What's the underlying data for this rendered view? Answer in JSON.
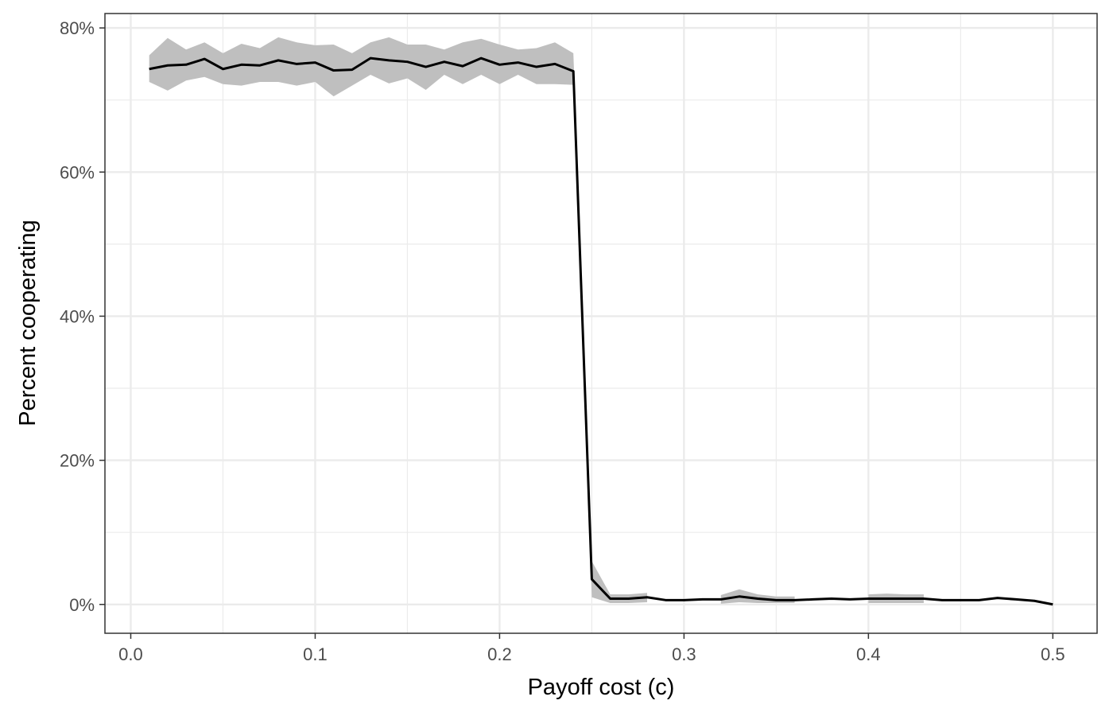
{
  "chart_data": {
    "type": "line",
    "xlabel": "Payoff cost (c)",
    "ylabel": "Percent cooperating",
    "xlim": [
      -0.014,
      0.524
    ],
    "ylim": [
      -0.04,
      0.82
    ],
    "x_ticks": [
      0.0,
      0.1,
      0.2,
      0.3,
      0.4,
      0.5
    ],
    "x_tick_labels": [
      "0.0",
      "0.1",
      "0.2",
      "0.3",
      "0.4",
      "0.5"
    ],
    "y_ticks": [
      0.0,
      0.2,
      0.4,
      0.6,
      0.8
    ],
    "y_tick_labels": [
      "0%",
      "20%",
      "40%",
      "60%",
      "80%"
    ],
    "x_minor_ticks": [
      0.05,
      0.15,
      0.25,
      0.35,
      0.45
    ],
    "y_minor_ticks": [
      0.1,
      0.3,
      0.5,
      0.7
    ],
    "grid": true,
    "legend": "none",
    "colors": {
      "line": "#000000",
      "ribbon": "#bfbfbf",
      "grid": "#ebebeb",
      "panel_border": "#333333",
      "tick_label": "#4d4d4d"
    },
    "series": [
      {
        "x": [
          0.01,
          0.02,
          0.03,
          0.04,
          0.05,
          0.06,
          0.07,
          0.08,
          0.09,
          0.1,
          0.11,
          0.12,
          0.13,
          0.14,
          0.15,
          0.16,
          0.17,
          0.18,
          0.19,
          0.2,
          0.21,
          0.22,
          0.23,
          0.24,
          0.25,
          0.26,
          0.27,
          0.28,
          0.29,
          0.3,
          0.31,
          0.32,
          0.33,
          0.34,
          0.35,
          0.36,
          0.37,
          0.38,
          0.39,
          0.4,
          0.41,
          0.42,
          0.43,
          0.44,
          0.45,
          0.46,
          0.47,
          0.48,
          0.49,
          0.5
        ],
        "y": [
          0.743,
          0.748,
          0.749,
          0.757,
          0.743,
          0.749,
          0.748,
          0.755,
          0.75,
          0.752,
          0.741,
          0.742,
          0.758,
          0.755,
          0.753,
          0.746,
          0.753,
          0.747,
          0.758,
          0.749,
          0.752,
          0.746,
          0.75,
          0.74,
          0.035,
          0.008,
          0.008,
          0.01,
          0.006,
          0.006,
          0.007,
          0.007,
          0.011,
          0.008,
          0.006,
          0.006,
          0.007,
          0.008,
          0.007,
          0.008,
          0.008,
          0.008,
          0.008,
          0.006,
          0.006,
          0.006,
          0.009,
          0.007,
          0.005,
          0.0
        ],
        "lower": [
          0.725,
          0.713,
          0.727,
          0.732,
          0.722,
          0.72,
          0.725,
          0.725,
          0.72,
          0.725,
          0.705,
          0.72,
          0.735,
          0.723,
          0.73,
          0.714,
          0.735,
          0.722,
          0.735,
          0.722,
          0.735,
          0.722,
          0.722,
          0.721,
          0.01,
          0.002,
          0.002,
          0.003,
          null,
          null,
          null,
          0.001,
          0.003,
          0.002,
          0.002,
          0.002,
          null,
          null,
          null,
          0.002,
          0.002,
          0.002,
          0.002,
          null,
          null,
          null,
          null,
          null,
          null,
          null
        ],
        "upper": [
          0.762,
          0.786,
          0.77,
          0.78,
          0.765,
          0.778,
          0.772,
          0.787,
          0.78,
          0.776,
          0.777,
          0.765,
          0.78,
          0.787,
          0.777,
          0.777,
          0.77,
          0.78,
          0.785,
          0.777,
          0.77,
          0.772,
          0.78,
          0.765,
          0.06,
          0.014,
          0.014,
          0.016,
          null,
          null,
          null,
          0.013,
          0.021,
          0.014,
          0.011,
          0.011,
          null,
          null,
          null,
          0.014,
          0.015,
          0.014,
          0.014,
          null,
          null,
          null,
          null,
          null,
          null,
          null
        ]
      }
    ]
  }
}
